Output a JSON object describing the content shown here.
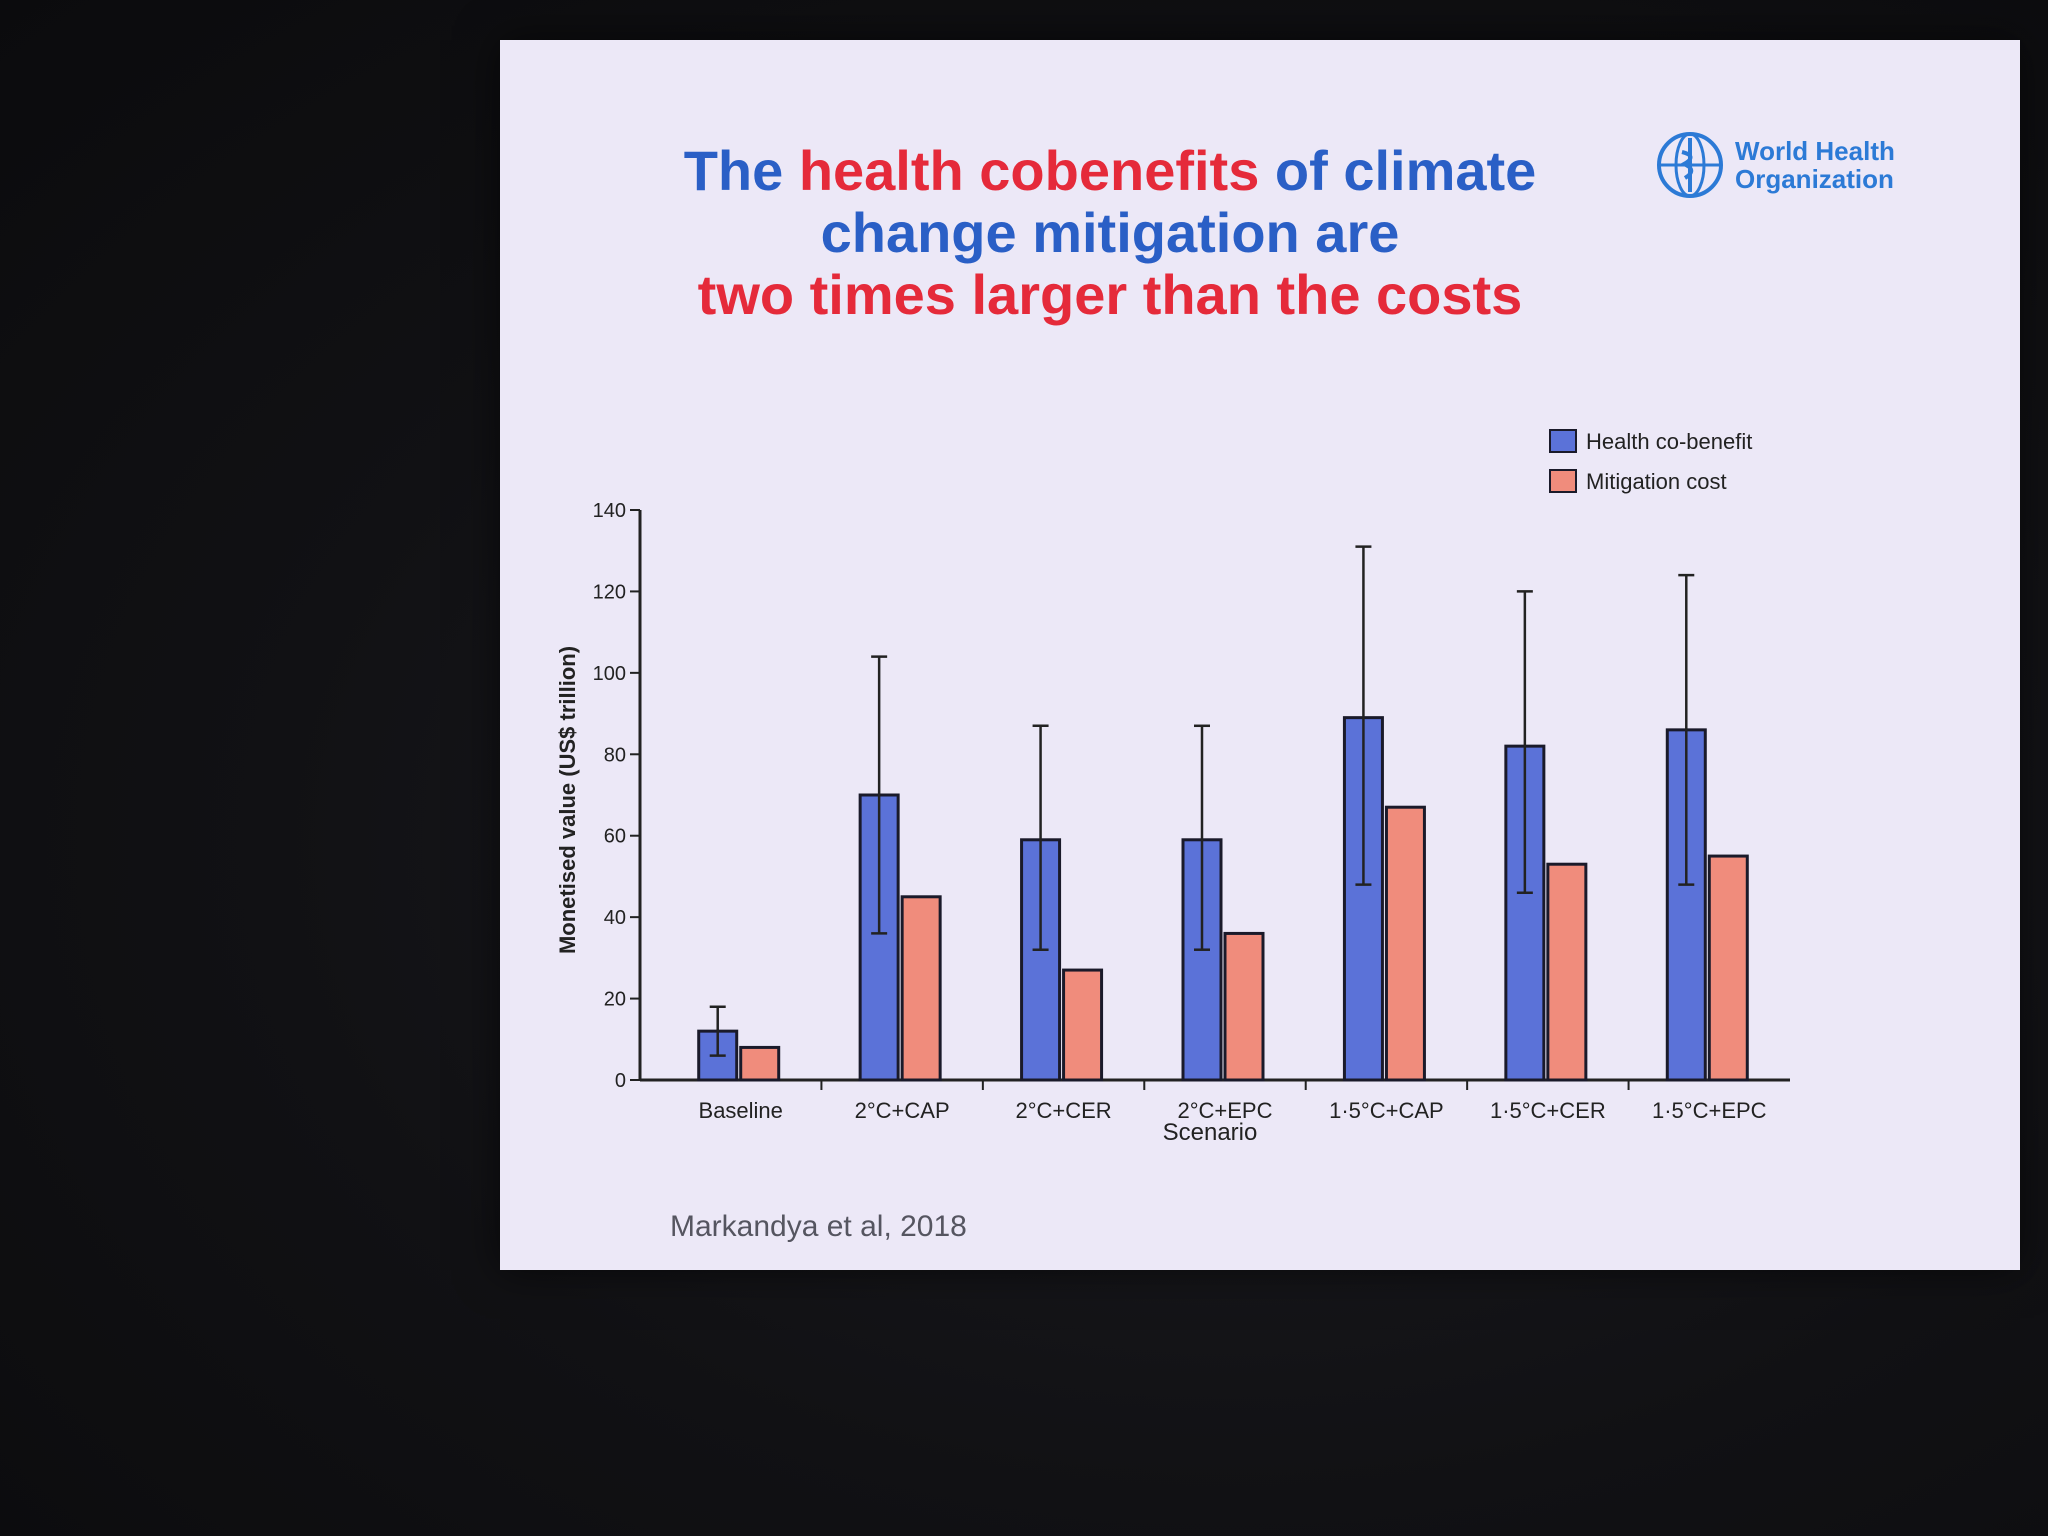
{
  "slide": {
    "title_parts": [
      {
        "text": "The ",
        "color": "#2a5fc6"
      },
      {
        "text": "health cobenefits",
        "color": "#e52a3a"
      },
      {
        "text": " of climate",
        "color": "#2a5fc6"
      },
      {
        "text": "change mitigation are",
        "color": "#2a5fc6"
      },
      {
        "text": "two times larger than the costs",
        "color": "#e52a3a"
      }
    ],
    "logo_line1": "World Health",
    "logo_line2": "Organization",
    "citation": "Markandya et al, 2018"
  },
  "chart_data": {
    "type": "bar",
    "categories": [
      "Baseline",
      "2°C+CAP",
      "2°C+CER",
      "2°C+EPC",
      "1·5°C+CAP",
      "1·5°C+CER",
      "1·5°C+EPC"
    ],
    "series": [
      {
        "name": "Health co-benefit",
        "color": "#5b72d8",
        "values": [
          12,
          70,
          59,
          59,
          89,
          82,
          86
        ],
        "error_low": [
          6,
          36,
          32,
          32,
          48,
          46,
          48
        ],
        "error_high": [
          18,
          104,
          87,
          87,
          131,
          120,
          124
        ]
      },
      {
        "name": "Mitigation cost",
        "color": "#f08c7c",
        "values": [
          8,
          45,
          27,
          36,
          67,
          53,
          55
        ]
      }
    ],
    "xlabel": "Scenario",
    "ylabel": "Monetised value (US$ trillion)",
    "ylim": [
      0,
      140
    ],
    "yticks": [
      0,
      20,
      40,
      60,
      80,
      100,
      120,
      140
    ],
    "legend_position": "top-right",
    "grid": false
  }
}
